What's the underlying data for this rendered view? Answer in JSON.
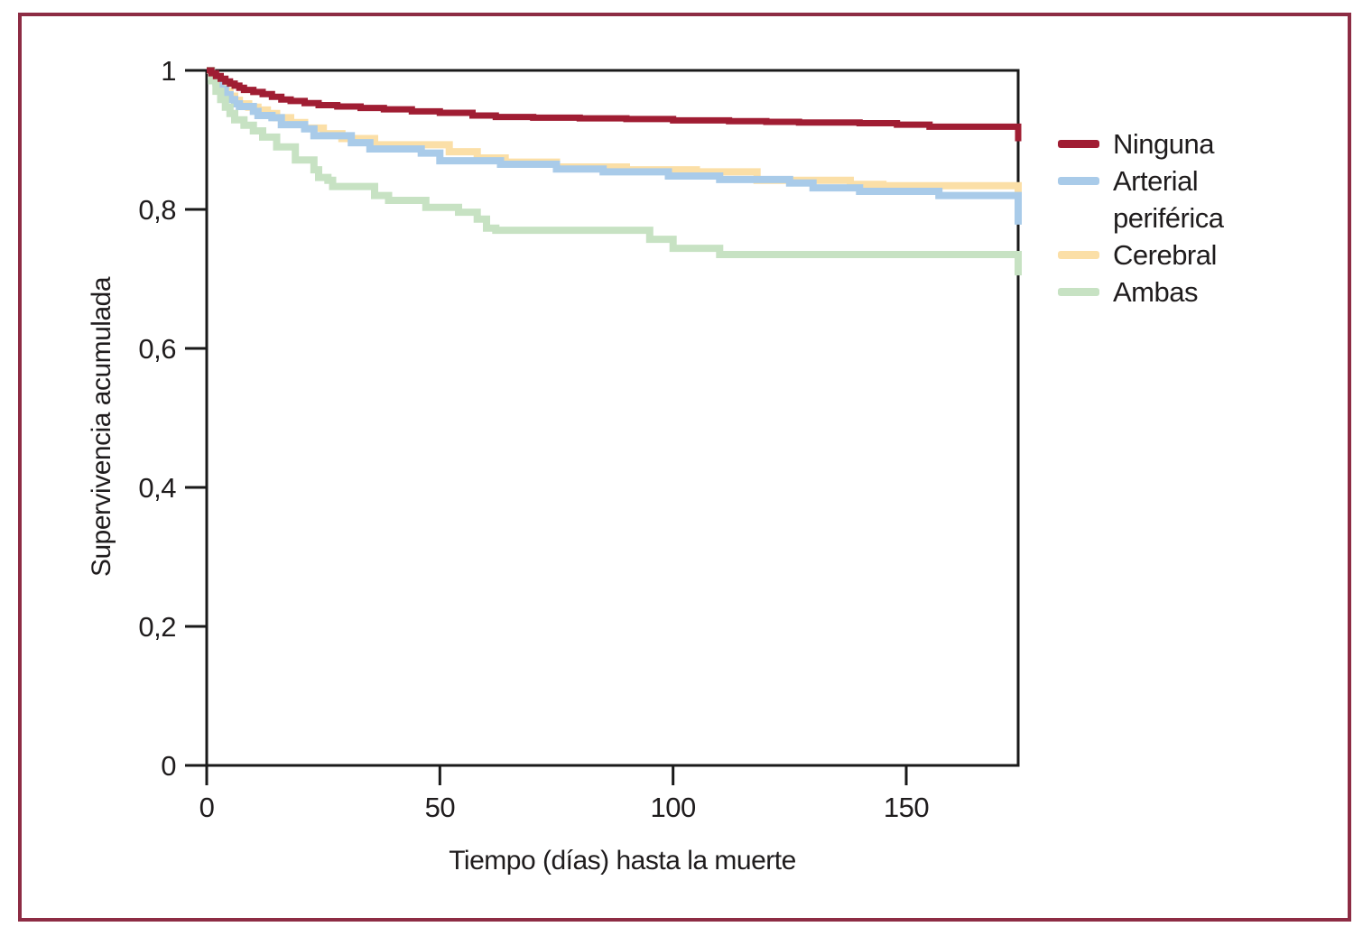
{
  "figure": {
    "border_color": "#8d2c44",
    "background": "#ffffff"
  },
  "chart_data": {
    "type": "line",
    "subtype": "kaplan-meier-step",
    "title": "",
    "xlabel": "Tiempo (días) hasta la muerte",
    "ylabel": "Supervivencia acumulada",
    "xlim": [
      0,
      174
    ],
    "ylim": [
      0,
      1
    ],
    "grid": false,
    "legend_position": "right",
    "axis_color": "#1a1a1a",
    "text_color": "#1f1c1d",
    "xticks": {
      "values": [
        0,
        50,
        100,
        150
      ],
      "labels": [
        "0",
        "50",
        "100",
        "150"
      ]
    },
    "yticks": {
      "values": [
        0,
        0.2,
        0.4,
        0.6,
        0.8,
        1
      ],
      "labels": [
        "0",
        "0,2",
        "0,4",
        "0,6",
        "0,8",
        "1"
      ]
    },
    "series": [
      {
        "name": "Cerebral",
        "color": "#fbdfa7",
        "stroke_width": 8,
        "points": [
          [
            0,
            1.0
          ],
          [
            1,
            0.992
          ],
          [
            2,
            0.984
          ],
          [
            3,
            0.976
          ],
          [
            4,
            0.97
          ],
          [
            5,
            0.963
          ],
          [
            6,
            0.957
          ],
          [
            7,
            0.952
          ],
          [
            9,
            0.947
          ],
          [
            11,
            0.943
          ],
          [
            13,
            0.938
          ],
          [
            15,
            0.932
          ],
          [
            18,
            0.925
          ],
          [
            21,
            0.917
          ],
          [
            25,
            0.909
          ],
          [
            29,
            0.902
          ],
          [
            36,
            0.893
          ],
          [
            52,
            0.883
          ],
          [
            58,
            0.874
          ],
          [
            64,
            0.868
          ],
          [
            75,
            0.861
          ],
          [
            90,
            0.857
          ],
          [
            105,
            0.854
          ],
          [
            118,
            0.842
          ],
          [
            138,
            0.836
          ],
          [
            145,
            0.834
          ],
          [
            174,
            0.8
          ]
        ]
      },
      {
        "name": "Arterial periférica",
        "color": "#a9cbe9",
        "stroke_width": 8,
        "points": [
          [
            0,
            1.0
          ],
          [
            1,
            0.991
          ],
          [
            2,
            0.982
          ],
          [
            3,
            0.973
          ],
          [
            4,
            0.965
          ],
          [
            5,
            0.958
          ],
          [
            6,
            0.952
          ],
          [
            7,
            0.948
          ],
          [
            10,
            0.941
          ],
          [
            11,
            0.935
          ],
          [
            14,
            0.932
          ],
          [
            16,
            0.922
          ],
          [
            21,
            0.916
          ],
          [
            23,
            0.906
          ],
          [
            31,
            0.896
          ],
          [
            35,
            0.887
          ],
          [
            46,
            0.881
          ],
          [
            50,
            0.87
          ],
          [
            63,
            0.865
          ],
          [
            75,
            0.858
          ],
          [
            85,
            0.854
          ],
          [
            99,
            0.848
          ],
          [
            110,
            0.843
          ],
          [
            125,
            0.838
          ],
          [
            130,
            0.831
          ],
          [
            140,
            0.826
          ],
          [
            157,
            0.82
          ],
          [
            174,
            0.778
          ]
        ]
      },
      {
        "name": "Ambas",
        "color": "#c7e2c3",
        "stroke_width": 8,
        "points": [
          [
            0,
            1.0
          ],
          [
            1,
            0.985
          ],
          [
            2,
            0.97
          ],
          [
            3,
            0.958
          ],
          [
            4,
            0.947
          ],
          [
            5,
            0.938
          ],
          [
            6,
            0.929
          ],
          [
            8,
            0.921
          ],
          [
            10,
            0.913
          ],
          [
            12,
            0.904
          ],
          [
            15,
            0.89
          ],
          [
            19,
            0.871
          ],
          [
            23,
            0.857
          ],
          [
            24,
            0.846
          ],
          [
            26,
            0.842
          ],
          [
            27,
            0.833
          ],
          [
            36,
            0.82
          ],
          [
            39,
            0.813
          ],
          [
            47,
            0.803
          ],
          [
            54,
            0.796
          ],
          [
            58,
            0.786
          ],
          [
            60,
            0.773
          ],
          [
            62,
            0.77
          ],
          [
            95,
            0.757
          ],
          [
            100,
            0.744
          ],
          [
            110,
            0.735
          ],
          [
            174,
            0.705
          ]
        ]
      },
      {
        "name": "Ninguna",
        "color": "#a01d33",
        "stroke_width": 7,
        "points": [
          [
            0,
            1.0
          ],
          [
            1,
            0.996
          ],
          [
            2,
            0.992
          ],
          [
            3,
            0.988
          ],
          [
            4,
            0.984
          ],
          [
            5,
            0.981
          ],
          [
            6,
            0.978
          ],
          [
            7,
            0.975
          ],
          [
            8,
            0.972
          ],
          [
            10,
            0.969
          ],
          [
            12,
            0.966
          ],
          [
            14,
            0.962
          ],
          [
            16,
            0.958
          ],
          [
            18,
            0.956
          ],
          [
            21,
            0.953
          ],
          [
            24,
            0.95
          ],
          [
            28,
            0.948
          ],
          [
            33,
            0.946
          ],
          [
            38,
            0.944
          ],
          [
            44,
            0.941
          ],
          [
            50,
            0.939
          ],
          [
            57,
            0.935
          ],
          [
            62,
            0.933
          ],
          [
            70,
            0.932
          ],
          [
            80,
            0.931
          ],
          [
            90,
            0.93
          ],
          [
            100,
            0.928
          ],
          [
            112,
            0.927
          ],
          [
            120,
            0.926
          ],
          [
            127,
            0.925
          ],
          [
            140,
            0.924
          ],
          [
            148,
            0.922
          ],
          [
            155,
            0.919
          ],
          [
            174,
            0.898
          ]
        ]
      }
    ]
  },
  "legend": {
    "items": [
      {
        "label": "Ninguna",
        "color": "#a01d33"
      },
      {
        "label": "Arterial periférica",
        "color": "#a9cbe9"
      },
      {
        "label": "Cerebral",
        "color": "#fbdfa7"
      },
      {
        "label": "Ambas",
        "color": "#c7e2c3"
      }
    ]
  }
}
